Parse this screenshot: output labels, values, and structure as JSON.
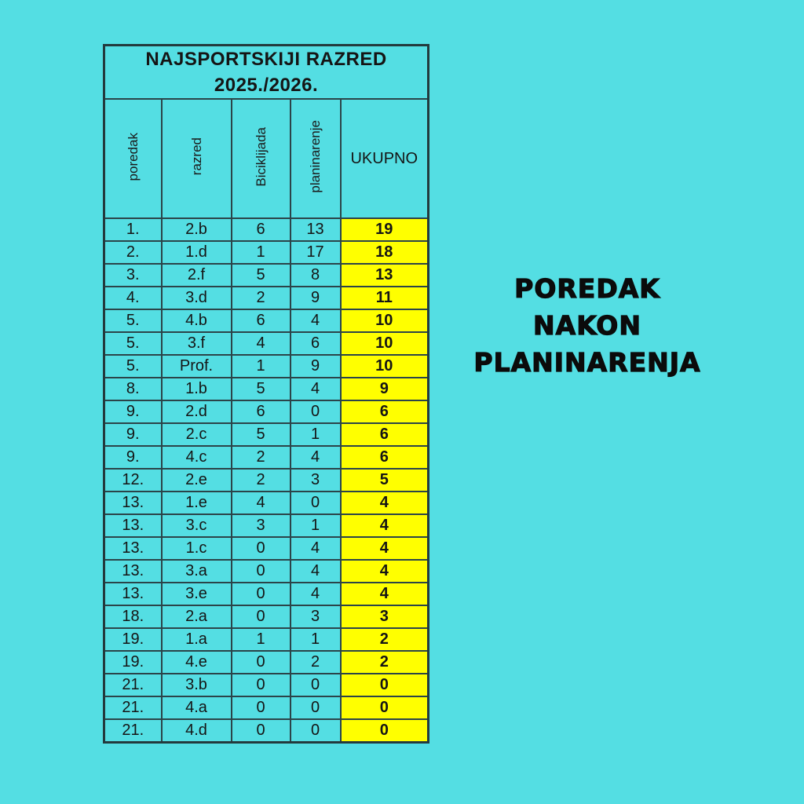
{
  "page": {
    "background_color": "#54DEE3"
  },
  "colors": {
    "cell_cyan": "#54DEE3",
    "highlight_yellow": "#FFFF00",
    "border_dark": "#2B4449",
    "text_black": "#151515"
  },
  "table": {
    "title_line1": "NAJSPORTSKIJI RAZRED",
    "title_line2": "2025./2026.",
    "columns": [
      "poredak",
      "razred",
      "Biciklijada",
      "planinarenje",
      "UKUPNO"
    ],
    "rows": [
      [
        "1.",
        "2.b",
        "6",
        "13",
        "19"
      ],
      [
        "2.",
        "1.d",
        "1",
        "17",
        "18"
      ],
      [
        "3.",
        "2.f",
        "5",
        "8",
        "13"
      ],
      [
        "4.",
        "3.d",
        "2",
        "9",
        "11"
      ],
      [
        "5.",
        "4.b",
        "6",
        "4",
        "10"
      ],
      [
        "5.",
        "3.f",
        "4",
        "6",
        "10"
      ],
      [
        "5.",
        "Prof.",
        "1",
        "9",
        "10"
      ],
      [
        "8.",
        "1.b",
        "5",
        "4",
        "9"
      ],
      [
        "9.",
        "2.d",
        "6",
        "0",
        "6"
      ],
      [
        "9.",
        "2.c",
        "5",
        "1",
        "6"
      ],
      [
        "9.",
        "4.c",
        "2",
        "4",
        "6"
      ],
      [
        "12.",
        "2.e",
        "2",
        "3",
        "5"
      ],
      [
        "13.",
        "1.e",
        "4",
        "0",
        "4"
      ],
      [
        "13.",
        "3.c",
        "3",
        "1",
        "4"
      ],
      [
        "13.",
        "1.c",
        "0",
        "4",
        "4"
      ],
      [
        "13.",
        "3.a",
        "0",
        "4",
        "4"
      ],
      [
        "13.",
        "3.e",
        "0",
        "4",
        "4"
      ],
      [
        "18.",
        "2.a",
        "0",
        "3",
        "3"
      ],
      [
        "19.",
        "1.a",
        "1",
        "1",
        "2"
      ],
      [
        "19.",
        "4.e",
        "0",
        "2",
        "2"
      ],
      [
        "21.",
        "3.b",
        "0",
        "0",
        "0"
      ],
      [
        "21.",
        "4.a",
        "0",
        "0",
        "0"
      ],
      [
        "21.",
        "4.d",
        "0",
        "0",
        "0"
      ]
    ]
  },
  "caption": {
    "line1": "POREDAK",
    "line2": "NAKON",
    "line3": "PLANINARENJA"
  }
}
